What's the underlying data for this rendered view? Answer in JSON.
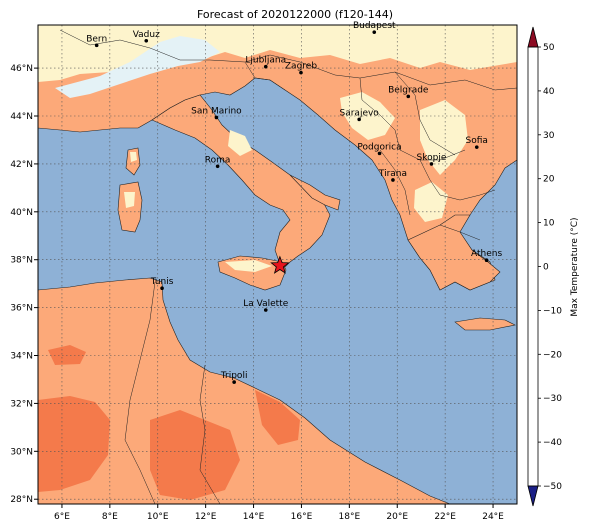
{
  "title": "Forecast of 2020122000 (f120-144)",
  "map": {
    "lon_ticks": [
      "6°E",
      "8°E",
      "10°E",
      "12°E",
      "14°E",
      "16°E",
      "18°E",
      "20°E",
      "22°E",
      "24°E"
    ],
    "lat_ticks": [
      "46°N",
      "44°N",
      "42°N",
      "40°N",
      "38°N",
      "36°N",
      "34°N",
      "32°N",
      "30°N",
      "28°N"
    ],
    "lon_range": [
      5,
      25
    ],
    "lat_range": [
      27.8,
      47.8
    ],
    "grid": true
  },
  "cities": [
    {
      "name": "Bern",
      "lon": 7.45,
      "lat": 46.95
    },
    {
      "name": "Vaduz",
      "lon": 9.52,
      "lat": 47.14
    },
    {
      "name": "Budapest",
      "lon": 19.04,
      "lat": 47.5
    },
    {
      "name": "Ljubljana",
      "lon": 14.51,
      "lat": 46.06
    },
    {
      "name": "Zagreb",
      "lon": 15.98,
      "lat": 45.81
    },
    {
      "name": "Belgrade",
      "lon": 20.46,
      "lat": 44.82
    },
    {
      "name": "San Marino",
      "lon": 12.45,
      "lat": 43.94
    },
    {
      "name": "Sarajevo",
      "lon": 18.41,
      "lat": 43.86
    },
    {
      "name": "Sofia",
      "lon": 23.32,
      "lat": 42.7
    },
    {
      "name": "Podgorica",
      "lon": 19.26,
      "lat": 42.44
    },
    {
      "name": "Skopje",
      "lon": 21.43,
      "lat": 42.0
    },
    {
      "name": "Roma",
      "lon": 12.5,
      "lat": 41.9
    },
    {
      "name": "Tirana",
      "lon": 19.82,
      "lat": 41.33
    },
    {
      "name": "Athens",
      "lon": 23.73,
      "lat": 37.98
    },
    {
      "name": "Tunis",
      "lon": 10.18,
      "lat": 36.81
    },
    {
      "name": "La Valette",
      "lon": 14.51,
      "lat": 35.9
    },
    {
      "name": "Tripoli",
      "lon": 13.19,
      "lat": 32.89
    }
  ],
  "marker": {
    "type": "star",
    "lon": 15.1,
    "lat": 37.75,
    "color": "#e8141c"
  },
  "colorbar": {
    "label": "Max Temperature (°C)",
    "ticks": [
      "50",
      "40",
      "30",
      "20",
      "10",
      "0",
      "−10",
      "−20",
      "−30",
      "−40",
      "−50"
    ],
    "range": [
      -50,
      50
    ],
    "colors": [
      "#1a1f86",
      "#3553a3",
      "#5a86bd",
      "#8aaed4",
      "#b7d6e8",
      "#e8f5f7",
      "#fdf6cc",
      "#fdcd95",
      "#f9935e",
      "#e6553b",
      "#c0202b",
      "#8c0b22"
    ]
  },
  "palette": {
    "sea": "#8eb1d6",
    "warm_light": "#fdf4cc",
    "warm_orange": "#fca979",
    "hot_orange": "#f47a4b",
    "hot_red": "#e55336",
    "cold_pale": "#e4f2f6"
  }
}
